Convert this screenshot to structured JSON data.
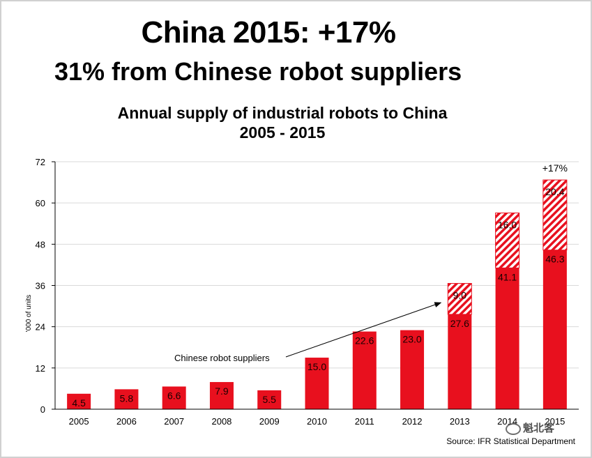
{
  "header": {
    "title": "China 2015: +17%",
    "subtitle": "31% from Chinese robot suppliers"
  },
  "chart_data": {
    "type": "bar",
    "stacked": true,
    "title_line1": "Annual supply of industrial robots to China",
    "title_line2": "2005 - 2015",
    "ylabel": "'000 of units",
    "xlabel": "",
    "categories": [
      "2005",
      "2006",
      "2007",
      "2008",
      "2009",
      "2010",
      "2011",
      "2012",
      "2013",
      "2014",
      "2015"
    ],
    "y_ticks": [
      0,
      12,
      24,
      36,
      48,
      60,
      72
    ],
    "ylim": [
      0,
      72
    ],
    "grid": true,
    "series": [
      {
        "values": [
          4.5,
          5.8,
          6.6,
          7.9,
          5.5,
          15.0,
          22.6,
          23.0,
          27.6,
          41.1,
          46.3
        ],
        "labels": [
          "4.5",
          "5.8",
          "6.6",
          "7.9",
          "5.5",
          "15.0",
          "22.6",
          "23.0",
          "27.6",
          "41.1",
          "46.3"
        ],
        "color": "#e8101e",
        "fill": "solid"
      },
      {
        "name": "Chinese robot suppliers",
        "values": [
          null,
          null,
          null,
          null,
          null,
          null,
          null,
          null,
          9.0,
          16.0,
          20.4
        ],
        "labels": [
          "",
          "",
          "",
          "",
          "",
          "",
          "",
          "",
          "9.0",
          "16.0",
          "20.4"
        ],
        "color": "#e8101e",
        "fill": "hatched"
      }
    ],
    "annotations": [
      {
        "text": "Chinese robot suppliers",
        "points_to": "2013"
      },
      {
        "text": "+17%",
        "above": "2015"
      }
    ],
    "source": "Source: IFR Statistical Department"
  },
  "watermark": {
    "text": "魁北客"
  }
}
